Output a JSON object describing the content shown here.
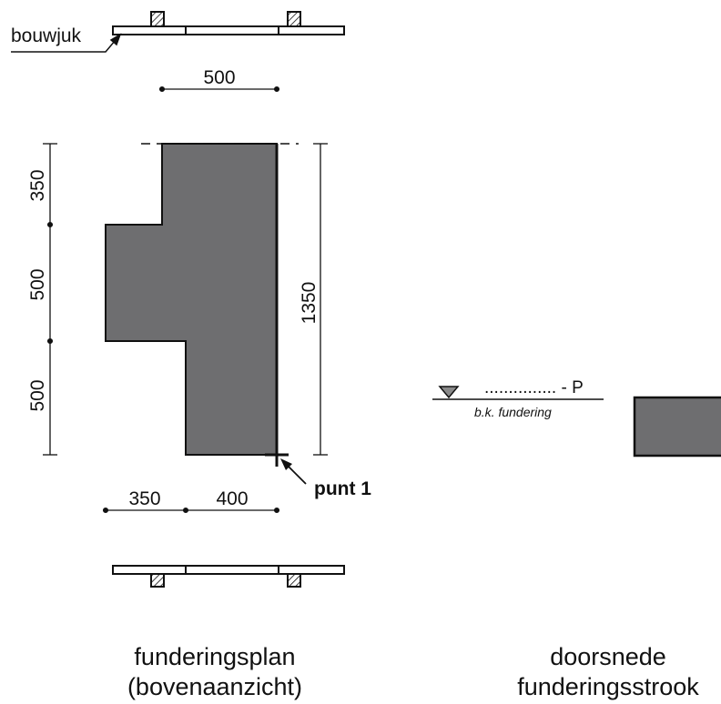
{
  "labels": {
    "bouwjuk": "bouwjuk",
    "punt": "punt 1",
    "level_dots": "............... - P",
    "level_caption": "b.k. fundering"
  },
  "dimensions": {
    "top_width": "500",
    "left_upper": "350",
    "left_middle": "500",
    "left_lower": "500",
    "right_total": "1350",
    "bottom_left": "350",
    "bottom_right": "400"
  },
  "captions": {
    "plan_line1": "funderingsplan",
    "plan_line2": "(bovenaanzicht)",
    "section_line1": "doorsnede",
    "section_line2": "funderingsstrook"
  },
  "colors": {
    "foundation_fill": "#6e6e70",
    "line": "#111111"
  }
}
